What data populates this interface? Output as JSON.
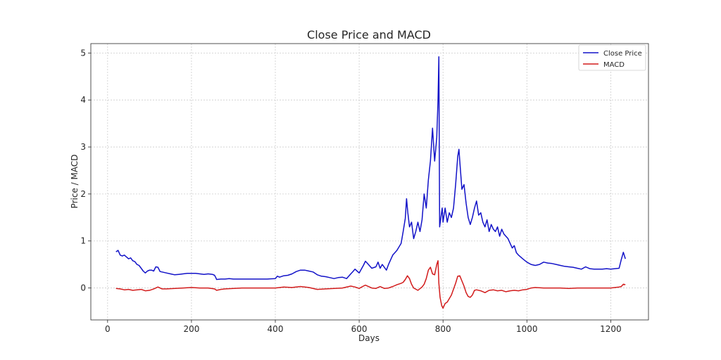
{
  "chart_data": {
    "type": "line",
    "title": "Close Price and MACD",
    "xlabel": "Days",
    "ylabel": "Price / MACD",
    "xlim": [
      -40,
      1290
    ],
    "ylim": [
      -0.68,
      5.2
    ],
    "xticks": [
      0,
      200,
      400,
      600,
      800,
      1000,
      1200
    ],
    "yticks": [
      0,
      1,
      2,
      3,
      4,
      5
    ],
    "grid": true,
    "legend_position": "top-right",
    "series": [
      {
        "name": "Close Price",
        "color": "#1212c8",
        "x": [
          20,
          25,
          30,
          35,
          40,
          45,
          50,
          55,
          60,
          65,
          70,
          75,
          80,
          85,
          90,
          95,
          100,
          105,
          110,
          115,
          120,
          125,
          130,
          140,
          150,
          160,
          170,
          180,
          190,
          200,
          210,
          220,
          230,
          240,
          250,
          255,
          258,
          260,
          270,
          280,
          290,
          300,
          320,
          340,
          360,
          380,
          400,
          405,
          410,
          420,
          430,
          440,
          450,
          460,
          470,
          480,
          490,
          500,
          510,
          520,
          530,
          540,
          550,
          560,
          570,
          580,
          585,
          590,
          600,
          610,
          615,
          620,
          630,
          640,
          645,
          650,
          655,
          660,
          665,
          670,
          680,
          690,
          700,
          705,
          710,
          713,
          716,
          720,
          725,
          730,
          735,
          740,
          745,
          750,
          755,
          760,
          765,
          770,
          775,
          780,
          785,
          788,
          790,
          792,
          795,
          798,
          800,
          805,
          810,
          815,
          820,
          825,
          830,
          835,
          838,
          840,
          845,
          850,
          855,
          860,
          865,
          870,
          875,
          880,
          885,
          890,
          895,
          900,
          905,
          910,
          915,
          920,
          925,
          930,
          935,
          940,
          945,
          950,
          955,
          960,
          965,
          970,
          975,
          980,
          990,
          1000,
          1010,
          1020,
          1030,
          1040,
          1050,
          1060,
          1070,
          1080,
          1090,
          1100,
          1110,
          1120,
          1130,
          1140,
          1150,
          1160,
          1170,
          1180,
          1190,
          1200,
          1210,
          1220,
          1225,
          1230,
          1235
        ],
        "values": [
          0.77,
          0.8,
          0.7,
          0.68,
          0.7,
          0.66,
          0.62,
          0.64,
          0.58,
          0.56,
          0.5,
          0.48,
          0.42,
          0.36,
          0.32,
          0.36,
          0.38,
          0.38,
          0.36,
          0.45,
          0.44,
          0.35,
          0.34,
          0.32,
          0.3,
          0.28,
          0.29,
          0.3,
          0.31,
          0.31,
          0.31,
          0.3,
          0.29,
          0.3,
          0.29,
          0.27,
          0.22,
          0.18,
          0.19,
          0.19,
          0.2,
          0.19,
          0.19,
          0.19,
          0.19,
          0.19,
          0.2,
          0.25,
          0.23,
          0.26,
          0.27,
          0.3,
          0.35,
          0.38,
          0.38,
          0.36,
          0.34,
          0.28,
          0.25,
          0.24,
          0.22,
          0.2,
          0.22,
          0.23,
          0.2,
          0.3,
          0.35,
          0.4,
          0.32,
          0.48,
          0.57,
          0.52,
          0.42,
          0.45,
          0.55,
          0.42,
          0.5,
          0.44,
          0.38,
          0.5,
          0.7,
          0.8,
          0.95,
          1.2,
          1.48,
          1.9,
          1.6,
          1.3,
          1.4,
          1.05,
          1.2,
          1.4,
          1.2,
          1.45,
          2.0,
          1.7,
          2.3,
          2.7,
          3.4,
          2.7,
          3.2,
          4.0,
          4.92,
          1.3,
          1.5,
          1.7,
          1.4,
          1.7,
          1.4,
          1.6,
          1.5,
          1.7,
          2.2,
          2.8,
          2.95,
          2.7,
          2.1,
          2.2,
          1.8,
          1.5,
          1.35,
          1.5,
          1.7,
          1.85,
          1.55,
          1.6,
          1.4,
          1.3,
          1.45,
          1.2,
          1.35,
          1.25,
          1.2,
          1.3,
          1.1,
          1.25,
          1.15,
          1.1,
          1.05,
          0.95,
          0.85,
          0.9,
          0.75,
          0.7,
          0.62,
          0.55,
          0.5,
          0.48,
          0.5,
          0.55,
          0.53,
          0.52,
          0.5,
          0.48,
          0.46,
          0.45,
          0.44,
          0.42,
          0.4,
          0.45,
          0.41,
          0.4,
          0.4,
          0.4,
          0.41,
          0.4,
          0.41,
          0.42,
          0.6,
          0.76,
          0.62
        ]
      },
      {
        "name": "MACD",
        "color": "#d21b1b",
        "x": [
          20,
          30,
          40,
          50,
          60,
          70,
          80,
          90,
          100,
          110,
          120,
          130,
          140,
          160,
          180,
          200,
          220,
          240,
          255,
          260,
          270,
          280,
          300,
          320,
          340,
          360,
          380,
          400,
          420,
          440,
          460,
          480,
          500,
          520,
          540,
          560,
          580,
          590,
          600,
          610,
          615,
          620,
          630,
          640,
          650,
          660,
          670,
          680,
          690,
          700,
          705,
          710,
          715,
          720,
          725,
          730,
          740,
          750,
          755,
          760,
          765,
          770,
          775,
          780,
          785,
          788,
          790,
          793,
          797,
          800,
          805,
          810,
          820,
          830,
          835,
          840,
          845,
          850,
          855,
          860,
          865,
          870,
          875,
          880,
          890,
          900,
          910,
          920,
          930,
          940,
          950,
          960,
          970,
          980,
          990,
          1000,
          1010,
          1020,
          1040,
          1060,
          1080,
          1100,
          1120,
          1140,
          1160,
          1180,
          1200,
          1210,
          1220,
          1225,
          1230,
          1235
        ],
        "values": [
          -0.01,
          -0.02,
          -0.04,
          -0.03,
          -0.05,
          -0.04,
          -0.03,
          -0.06,
          -0.05,
          -0.02,
          0.02,
          -0.02,
          -0.02,
          -0.01,
          0.0,
          0.01,
          0.0,
          0.0,
          -0.02,
          -0.05,
          -0.03,
          -0.02,
          -0.01,
          0.0,
          0.0,
          0.0,
          0.0,
          0.0,
          0.02,
          0.01,
          0.03,
          0.01,
          -0.03,
          -0.02,
          -0.01,
          0.0,
          0.04,
          0.02,
          -0.01,
          0.04,
          0.06,
          0.04,
          0.0,
          -0.01,
          0.03,
          -0.01,
          0.0,
          0.03,
          0.07,
          0.1,
          0.12,
          0.18,
          0.26,
          0.2,
          0.08,
          0.0,
          -0.05,
          0.02,
          0.08,
          0.2,
          0.38,
          0.44,
          0.3,
          0.28,
          0.5,
          0.58,
          0.1,
          -0.2,
          -0.38,
          -0.43,
          -0.33,
          -0.3,
          -0.15,
          0.1,
          0.25,
          0.26,
          0.15,
          0.04,
          -0.1,
          -0.18,
          -0.2,
          -0.15,
          -0.05,
          -0.04,
          -0.06,
          -0.1,
          -0.05,
          -0.04,
          -0.06,
          -0.05,
          -0.08,
          -0.06,
          -0.05,
          -0.06,
          -0.04,
          -0.03,
          0.0,
          0.01,
          0.0,
          0.0,
          0.0,
          -0.01,
          0.0,
          0.0,
          0.0,
          0.0,
          0.0,
          0.01,
          0.02,
          0.03,
          0.08,
          0.07
        ]
      }
    ]
  }
}
